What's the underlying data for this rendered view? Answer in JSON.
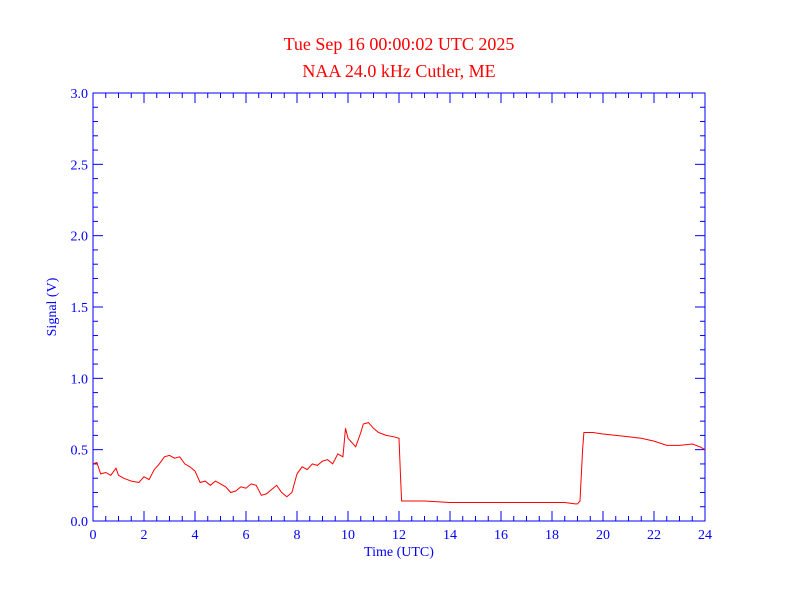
{
  "chart_data": {
    "type": "line",
    "title": "Tue Sep 16 00:00:02 UTC 2025",
    "subtitle": "NAA 24.0 kHz Cutler, ME",
    "xlabel": "Time (UTC)",
    "ylabel": "Signal (V)",
    "xlim": [
      0,
      24
    ],
    "ylim": [
      0.0,
      3.0
    ],
    "x_ticks": [
      0,
      2,
      4,
      6,
      8,
      10,
      12,
      14,
      16,
      18,
      20,
      22,
      24
    ],
    "y_ticks": [
      0.0,
      0.5,
      1.0,
      1.5,
      2.0,
      2.5,
      3.0
    ],
    "x_tick_labels": [
      "0",
      "2",
      "4",
      "6",
      "8",
      "10",
      "12",
      "14",
      "16",
      "18",
      "20",
      "22",
      "24"
    ],
    "y_tick_labels": [
      "0.0",
      "0.5",
      "1.0",
      "1.5",
      "2.0",
      "2.5",
      "3.0"
    ],
    "grid": false,
    "colors": {
      "axes": "#0000ff",
      "series": "#ff0000",
      "title": "#ff0000"
    },
    "series": [
      {
        "x": [
          0.0,
          0.15,
          0.3,
          0.5,
          0.7,
          0.9,
          1.0,
          1.2,
          1.5,
          1.8,
          2.0,
          2.2,
          2.4,
          2.6,
          2.8,
          3.0,
          3.2,
          3.4,
          3.6,
          3.8,
          4.0,
          4.2,
          4.4,
          4.6,
          4.8,
          5.0,
          5.2,
          5.4,
          5.6,
          5.8,
          6.0,
          6.2,
          6.4,
          6.6,
          6.8,
          7.0,
          7.2,
          7.4,
          7.6,
          7.8,
          8.0,
          8.2,
          8.4,
          8.6,
          8.8,
          9.0,
          9.2,
          9.4,
          9.6,
          9.8,
          9.9,
          10.0,
          10.1,
          10.3,
          10.5,
          10.6,
          10.8,
          11.0,
          11.2,
          11.5,
          11.8,
          12.0,
          12.05,
          12.1,
          12.5,
          13.0,
          14.0,
          15.0,
          16.0,
          17.0,
          18.0,
          18.5,
          18.9,
          19.0,
          19.1,
          19.2,
          19.25,
          19.3,
          19.6,
          20.0,
          20.5,
          21.0,
          21.5,
          22.0,
          22.5,
          23.0,
          23.5,
          23.8,
          24.0
        ],
        "y": [
          0.4,
          0.41,
          0.33,
          0.34,
          0.32,
          0.37,
          0.32,
          0.3,
          0.28,
          0.27,
          0.31,
          0.29,
          0.36,
          0.4,
          0.45,
          0.46,
          0.44,
          0.45,
          0.4,
          0.38,
          0.35,
          0.27,
          0.28,
          0.25,
          0.28,
          0.26,
          0.24,
          0.2,
          0.21,
          0.24,
          0.23,
          0.26,
          0.25,
          0.18,
          0.19,
          0.22,
          0.25,
          0.2,
          0.17,
          0.2,
          0.33,
          0.38,
          0.36,
          0.4,
          0.39,
          0.42,
          0.43,
          0.4,
          0.47,
          0.45,
          0.65,
          0.58,
          0.56,
          0.52,
          0.62,
          0.68,
          0.69,
          0.65,
          0.62,
          0.6,
          0.59,
          0.58,
          0.35,
          0.14,
          0.14,
          0.14,
          0.13,
          0.13,
          0.13,
          0.13,
          0.13,
          0.13,
          0.12,
          0.12,
          0.14,
          0.5,
          0.62,
          0.62,
          0.62,
          0.61,
          0.6,
          0.59,
          0.58,
          0.56,
          0.53,
          0.53,
          0.54,
          0.52,
          0.5
        ]
      }
    ]
  }
}
